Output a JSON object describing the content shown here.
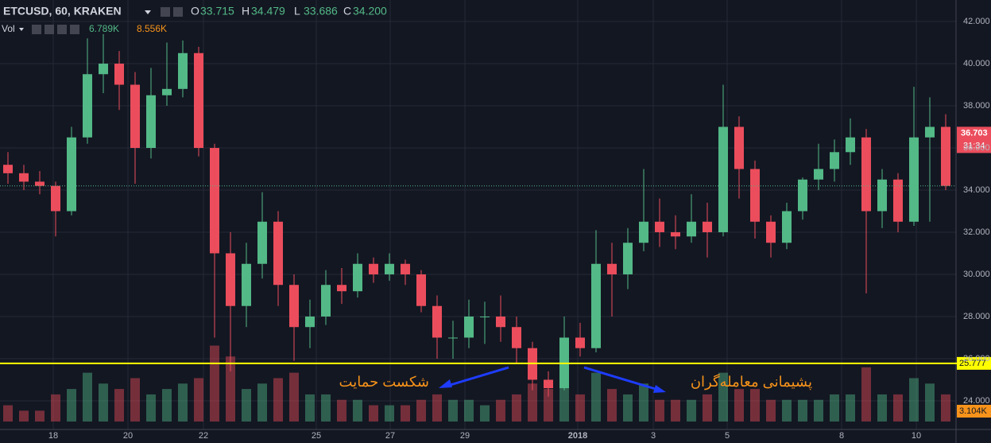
{
  "chart_data": {
    "type": "candlestick",
    "symbol": "ETCUSD, 60, KRAKEN",
    "legend": {
      "o_label": "O",
      "open": 33.715,
      "h_label": "H",
      "high": 34.479,
      "l_label": "L",
      "low": 33.686,
      "c_label": "C",
      "close": {
        "value": 34.2,
        "label": "34.200"
      }
    },
    "volume_legend": {
      "label": "Vol",
      "up": "6.789K",
      "down": "8.556K"
    },
    "open": [
      35.2,
      34.8,
      34.4,
      34.2,
      33.0,
      36.5,
      39.5,
      40.0,
      39.0,
      36.0,
      38.5,
      38.8,
      40.5,
      36.0,
      31.0,
      28.5,
      30.5,
      32.5,
      29.5,
      27.5,
      28.0,
      29.5,
      29.2,
      30.5,
      30.0,
      30.5,
      30.0,
      28.5,
      27.0,
      27.0,
      28.0,
      28.0,
      27.5,
      26.5,
      25.0,
      24.6,
      27.0,
      26.5,
      30.5,
      30.0,
      31.5,
      32.5,
      32.0,
      31.8,
      32.5,
      32.0,
      37.0,
      35.0,
      32.5,
      31.5,
      33.0,
      34.5,
      35.0,
      35.8,
      36.5,
      33.0,
      34.5,
      32.5,
      36.5,
      37.0
    ],
    "high": [
      35.8,
      35.2,
      34.9,
      34.4,
      37.0,
      41.2,
      41.4,
      40.6,
      39.6,
      39.8,
      41.0,
      41.1,
      40.8,
      36.2,
      32.0,
      31.5,
      33.9,
      33.0,
      30.0,
      28.8,
      30.2,
      30.3,
      31.0,
      30.8,
      31.0,
      30.7,
      30.2,
      29.0,
      27.8,
      28.8,
      28.7,
      29.0,
      28.0,
      26.8,
      25.4,
      28.0,
      27.7,
      32.1,
      31.5,
      32.2,
      35.0,
      33.6,
      32.8,
      33.8,
      33.4,
      39.0,
      37.5,
      35.4,
      32.8,
      33.4,
      34.6,
      36.2,
      36.4,
      37.4,
      36.9,
      35.0,
      34.8,
      38.9,
      38.4,
      37.6
    ],
    "low": [
      34.3,
      34.0,
      33.8,
      31.8,
      32.8,
      36.2,
      38.6,
      37.8,
      34.3,
      35.5,
      38.0,
      38.4,
      35.6,
      27.0,
      25.4,
      27.5,
      29.8,
      28.5,
      25.9,
      26.5,
      27.6,
      28.6,
      28.9,
      29.6,
      29.7,
      29.5,
      28.2,
      26.0,
      26.0,
      26.5,
      26.7,
      26.8,
      25.8,
      24.5,
      24.2,
      24.5,
      26.1,
      26.3,
      28.0,
      29.3,
      31.1,
      31.3,
      31.2,
      31.5,
      30.8,
      31.8,
      33.6,
      31.7,
      30.8,
      31.2,
      32.6,
      34.0,
      34.4,
      35.2,
      29.1,
      32.2,
      32.0,
      32.3,
      32.5,
      34.0
    ],
    "close": [
      34.8,
      34.4,
      34.2,
      33.0,
      36.5,
      39.5,
      40.0,
      39.0,
      36.0,
      38.5,
      38.8,
      40.5,
      36.0,
      31.0,
      28.5,
      30.5,
      32.5,
      29.5,
      27.5,
      28.0,
      29.5,
      29.2,
      30.5,
      30.0,
      30.5,
      30.0,
      28.5,
      27.0,
      27.0,
      28.0,
      28.0,
      27.5,
      26.5,
      25.0,
      24.6,
      27.0,
      26.5,
      30.5,
      30.0,
      31.5,
      32.5,
      32.0,
      31.8,
      32.5,
      32.0,
      37.0,
      35.0,
      32.5,
      31.5,
      33.0,
      34.5,
      35.0,
      35.8,
      36.5,
      33.0,
      34.5,
      32.5,
      36.5,
      37.0,
      34.2
    ],
    "volume": [
      3,
      2,
      2,
      5,
      6,
      9,
      7,
      6,
      8,
      5,
      6,
      7,
      8,
      14,
      12,
      6,
      7,
      8,
      9,
      5,
      5,
      4,
      4,
      3,
      3,
      3,
      4,
      5,
      4,
      4,
      3,
      4,
      5,
      7,
      6,
      7,
      5,
      9,
      6,
      5,
      7,
      4,
      4,
      4,
      5,
      9,
      6,
      6,
      4,
      4,
      4,
      4,
      5,
      5,
      10,
      5,
      5,
      8,
      7,
      5
    ],
    "vlim": [
      0,
      22
    ],
    "up_color": "#53b987",
    "down_color": "#eb4d5c",
    "xlim": [
      -0.5,
      59.65
    ],
    "xticks": [
      {
        "value": 2.85,
        "label": "18"
      },
      {
        "value": 7.55,
        "label": "20"
      },
      {
        "value": 12.3,
        "label": "22"
      },
      {
        "value": 19.4,
        "label": "25"
      },
      {
        "value": 24.05,
        "label": "27"
      },
      {
        "value": 28.75,
        "label": "29"
      },
      {
        "value": 35.85,
        "label": "2018"
      },
      {
        "value": 40.6,
        "label": "3"
      },
      {
        "value": 45.25,
        "label": "5"
      },
      {
        "value": 52.45,
        "label": "8"
      },
      {
        "value": 57.15,
        "label": "10"
      }
    ],
    "ylim": [
      22.64,
      43.02
    ],
    "yticks": [
      {
        "value": 24,
        "label": "24.000"
      },
      {
        "value": 26,
        "label": "26.000"
      },
      {
        "value": 28,
        "label": "28.000"
      },
      {
        "value": 30,
        "label": "30.000"
      },
      {
        "value": 32,
        "label": "32.000"
      },
      {
        "value": 34,
        "label": "34.000"
      },
      {
        "value": 36,
        "label": "36.000"
      },
      {
        "value": 38,
        "label": "38.000"
      },
      {
        "value": 40,
        "label": "40.000"
      },
      {
        "value": 42,
        "label": "42.000"
      }
    ],
    "grid": true,
    "support_level": 25.777,
    "support_color": "#ffff00",
    "current_price": 36.703,
    "countdown": "31:34",
    "volume_tag": "3.104K",
    "annotations": [
      "شکست حمایت",
      "پشیمانی معامله‌گران"
    ]
  }
}
